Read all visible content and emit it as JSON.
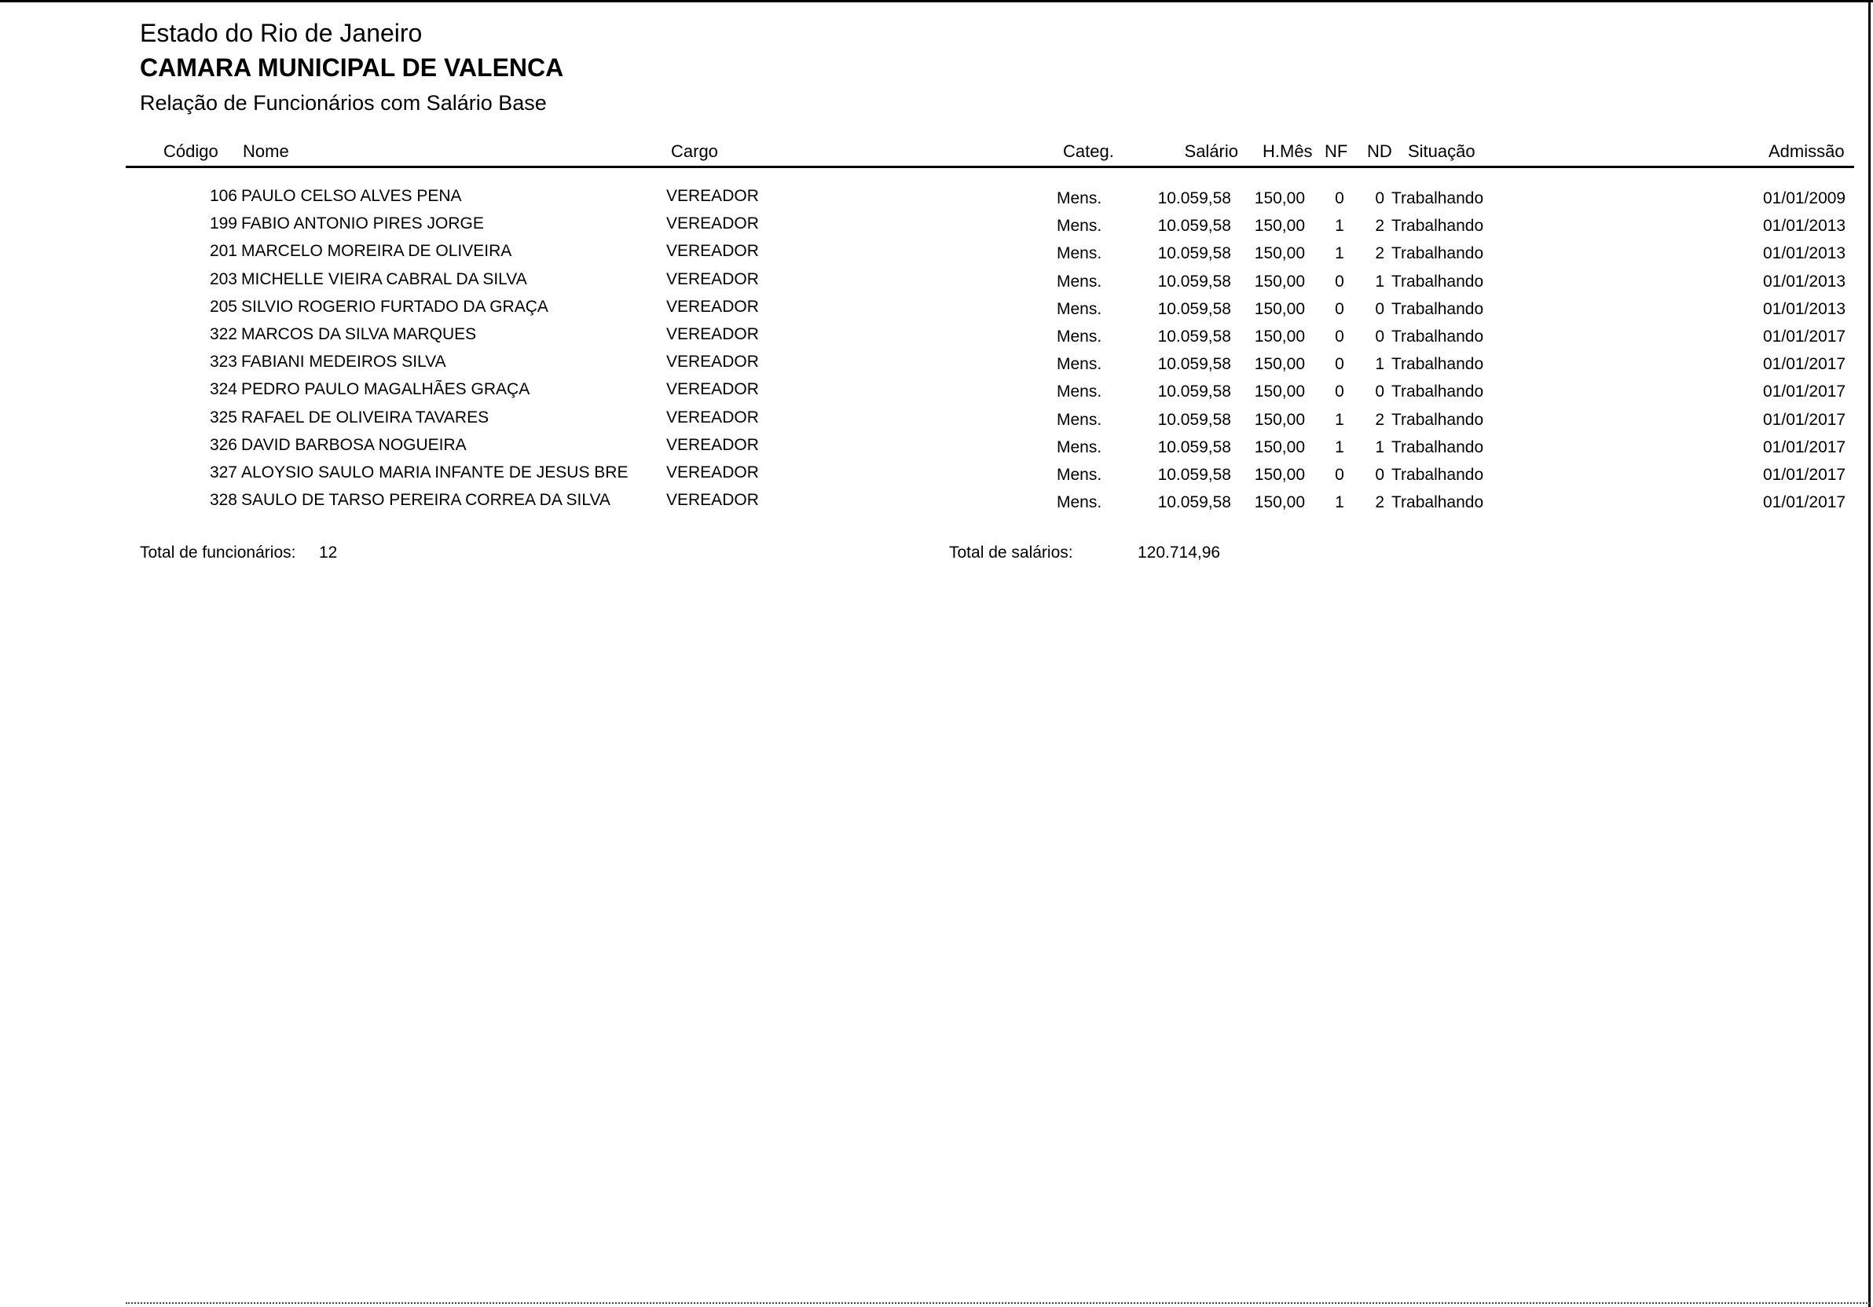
{
  "header": {
    "state": "Estado do Rio de Janeiro",
    "organization": "CAMARA MUNICIPAL DE VALENCA",
    "report_title": "Relação de Funcionários com Salário Base"
  },
  "columns": {
    "codigo": "Código",
    "nome": "Nome",
    "cargo": "Cargo",
    "categ": "Categ.",
    "salario": "Salário",
    "hmes": "H.Mês",
    "nf": "NF",
    "nd": "ND",
    "situacao": "Situação",
    "admissao": "Admissão"
  },
  "rows": [
    {
      "codigo": "106",
      "nome": "PAULO CELSO ALVES PENA",
      "cargo": "VEREADOR",
      "categ": "Mens.",
      "salario": "10.059,58",
      "hmes": "150,00",
      "nf": "0",
      "nd": "0",
      "situacao": "Trabalhando",
      "admissao": "01/01/2009"
    },
    {
      "codigo": "199",
      "nome": "FABIO ANTONIO PIRES JORGE",
      "cargo": "VEREADOR",
      "categ": "Mens.",
      "salario": "10.059,58",
      "hmes": "150,00",
      "nf": "1",
      "nd": "2",
      "situacao": "Trabalhando",
      "admissao": "01/01/2013"
    },
    {
      "codigo": "201",
      "nome": "MARCELO MOREIRA DE OLIVEIRA",
      "cargo": "VEREADOR",
      "categ": "Mens.",
      "salario": "10.059,58",
      "hmes": "150,00",
      "nf": "1",
      "nd": "2",
      "situacao": "Trabalhando",
      "admissao": "01/01/2013"
    },
    {
      "codigo": "203",
      "nome": "MICHELLE VIEIRA CABRAL DA SILVA",
      "cargo": "VEREADOR",
      "categ": "Mens.",
      "salario": "10.059,58",
      "hmes": "150,00",
      "nf": "0",
      "nd": "1",
      "situacao": "Trabalhando",
      "admissao": "01/01/2013"
    },
    {
      "codigo": "205",
      "nome": "SILVIO ROGERIO FURTADO DA GRAÇA",
      "cargo": "VEREADOR",
      "categ": "Mens.",
      "salario": "10.059,58",
      "hmes": "150,00",
      "nf": "0",
      "nd": "0",
      "situacao": "Trabalhando",
      "admissao": "01/01/2013"
    },
    {
      "codigo": "322",
      "nome": "MARCOS DA SILVA MARQUES",
      "cargo": "VEREADOR",
      "categ": "Mens.",
      "salario": "10.059,58",
      "hmes": "150,00",
      "nf": "0",
      "nd": "0",
      "situacao": "Trabalhando",
      "admissao": "01/01/2017"
    },
    {
      "codigo": "323",
      "nome": "FABIANI MEDEIROS SILVA",
      "cargo": "VEREADOR",
      "categ": "Mens.",
      "salario": "10.059,58",
      "hmes": "150,00",
      "nf": "0",
      "nd": "1",
      "situacao": "Trabalhando",
      "admissao": "01/01/2017"
    },
    {
      "codigo": "324",
      "nome": "PEDRO PAULO MAGALHÃES GRAÇA",
      "cargo": "VEREADOR",
      "categ": "Mens.",
      "salario": "10.059,58",
      "hmes": "150,00",
      "nf": "0",
      "nd": "0",
      "situacao": "Trabalhando",
      "admissao": "01/01/2017"
    },
    {
      "codigo": "325",
      "nome": "RAFAEL DE OLIVEIRA TAVARES",
      "cargo": "VEREADOR",
      "categ": "Mens.",
      "salario": "10.059,58",
      "hmes": "150,00",
      "nf": "1",
      "nd": "2",
      "situacao": "Trabalhando",
      "admissao": "01/01/2017"
    },
    {
      "codigo": "326",
      "nome": "DAVID BARBOSA NOGUEIRA",
      "cargo": "VEREADOR",
      "categ": "Mens.",
      "salario": "10.059,58",
      "hmes": "150,00",
      "nf": "1",
      "nd": "1",
      "situacao": "Trabalhando",
      "admissao": "01/01/2017"
    },
    {
      "codigo": "327",
      "nome": "ALOYSIO SAULO MARIA INFANTE DE JESUS BRE",
      "cargo": "VEREADOR",
      "categ": "Mens.",
      "salario": "10.059,58",
      "hmes": "150,00",
      "nf": "0",
      "nd": "0",
      "situacao": "Trabalhando",
      "admissao": "01/01/2017"
    },
    {
      "codigo": "328",
      "nome": "SAULO DE TARSO PEREIRA CORREA DA SILVA",
      "cargo": "VEREADOR",
      "categ": "Mens.",
      "salario": "10.059,58",
      "hmes": "150,00",
      "nf": "1",
      "nd": "2",
      "situacao": "Trabalhando",
      "admissao": "01/01/2017"
    }
  ],
  "footer": {
    "total_funcionarios_label": "Total de funcionários:",
    "total_funcionarios": "12",
    "total_salarios_label": "Total de salários:",
    "total_salarios": "120.714,96"
  }
}
